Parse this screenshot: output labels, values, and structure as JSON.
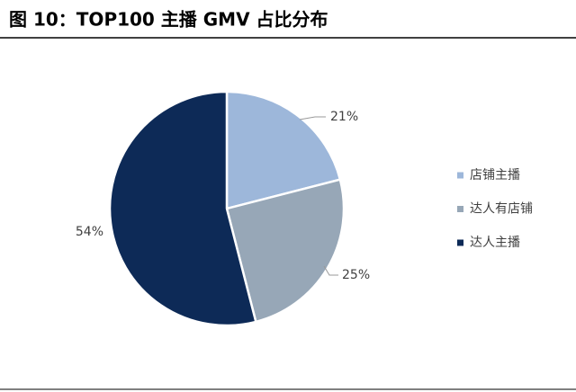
{
  "chart_data": {
    "type": "pie",
    "title": "图 10：TOP100 主播 GMV 占比分布",
    "categories": [
      "店铺主播",
      "达人有店铺",
      "达人主播"
    ],
    "values": [
      21,
      25,
      54
    ],
    "value_labels": [
      "21%",
      "25%",
      "54%"
    ],
    "colors": [
      "#9db7da",
      "#97a7b7",
      "#0d2a57"
    ],
    "legend": "right"
  }
}
